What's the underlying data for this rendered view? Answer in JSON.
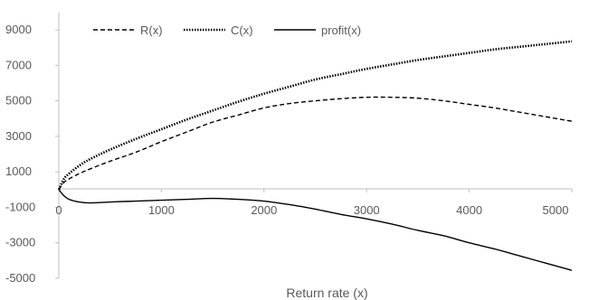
{
  "chart_data": {
    "type": "line",
    "title": "",
    "xlabel": "Return rate (x)",
    "ylabel": "",
    "xlim": [
      0,
      5000
    ],
    "ylim": [
      -5000,
      10000
    ],
    "x_ticks": [
      0,
      1000,
      2000,
      3000,
      4000,
      5000
    ],
    "y_ticks": [
      -5000,
      -3000,
      -1000,
      1000,
      3000,
      5000,
      7000,
      9000
    ],
    "x_tick_labels": [
      "0",
      "1000",
      "2000",
      "3000",
      "4000",
      "5000"
    ],
    "y_tick_labels": [
      "-5000",
      "-3000",
      "-1000",
      "1000",
      "3000",
      "5000",
      "7000",
      "9000"
    ],
    "grid": false,
    "legend_position": "top-left",
    "colors": {
      "axis": "#bfbfbf",
      "series": "#000000",
      "text": "#595959"
    },
    "x": [
      0,
      50,
      100,
      200,
      300,
      500,
      750,
      1000,
      1250,
      1500,
      1750,
      2000,
      2250,
      2500,
      2750,
      3000,
      3250,
      3500,
      3750,
      4000,
      4250,
      4500,
      4750,
      5000
    ],
    "series": [
      {
        "name": "R(x)",
        "style": "dashed",
        "values": [
          0,
          400,
          600,
          900,
          1150,
          1600,
          2100,
          2700,
          3250,
          3800,
          4200,
          4600,
          4850,
          5000,
          5120,
          5200,
          5200,
          5150,
          5000,
          4800,
          4600,
          4350,
          4100,
          3850
        ]
      },
      {
        "name": "C(x)",
        "style": "dotted",
        "values": [
          0,
          600,
          900,
          1350,
          1700,
          2250,
          2850,
          3400,
          3950,
          4450,
          4950,
          5400,
          5800,
          6200,
          6500,
          6800,
          7050,
          7300,
          7500,
          7700,
          7900,
          8050,
          8200,
          8350
        ]
      },
      {
        "name": "profit(x)",
        "style": "solid",
        "values": [
          0,
          -350,
          -550,
          -700,
          -750,
          -700,
          -650,
          -600,
          -550,
          -500,
          -550,
          -650,
          -850,
          -1100,
          -1400,
          -1650,
          -1950,
          -2300,
          -2600,
          -3000,
          -3350,
          -3750,
          -4150,
          -4550
        ]
      }
    ]
  }
}
